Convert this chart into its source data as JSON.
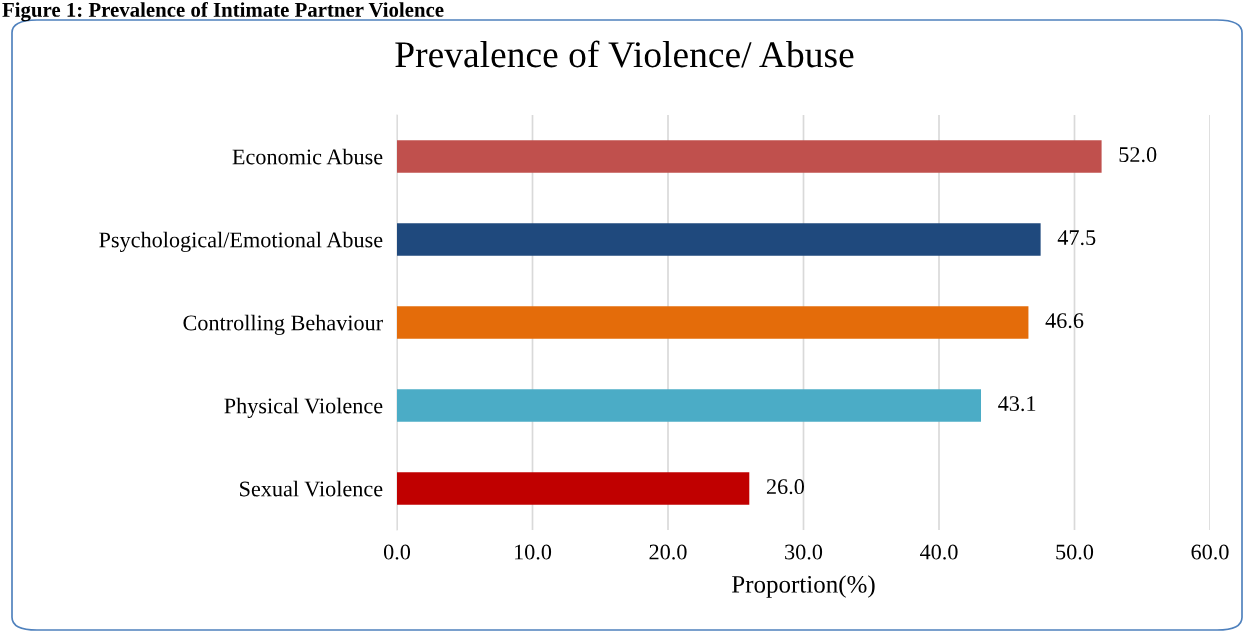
{
  "chart_data": {
    "type": "bar",
    "orientation": "horizontal",
    "title": "Prevalence of Violence/ Abuse",
    "xlabel": "Proportion(%)",
    "annotations": [
      "Figure 1: Prevalence of Intimate Partner Violence"
    ],
    "categories": [
      "Economic Abuse",
      "Psychological/Emotional Abuse",
      "Controlling Behaviour",
      "Physical Violence",
      "Sexual Violence"
    ],
    "values": [
      52.0,
      47.5,
      46.6,
      43.1,
      26.0
    ],
    "value_labels": [
      "52.0",
      "47.5",
      "46.6",
      "43.1",
      "26.0"
    ],
    "colors": [
      "#c0504d",
      "#1f497d",
      "#e46c0a",
      "#4bacc6",
      "#c00000"
    ],
    "xlim": [
      0,
      60
    ],
    "xticks": [
      {
        "value": 0,
        "label": "0.0"
      },
      {
        "value": 10,
        "label": "10.0"
      },
      {
        "value": 20,
        "label": "20.0"
      },
      {
        "value": 30,
        "label": "30.0"
      },
      {
        "value": 40,
        "label": "40.0"
      },
      {
        "value": 50,
        "label": "50.0"
      },
      {
        "value": 60,
        "label": "60.0"
      }
    ],
    "grid": "x"
  }
}
